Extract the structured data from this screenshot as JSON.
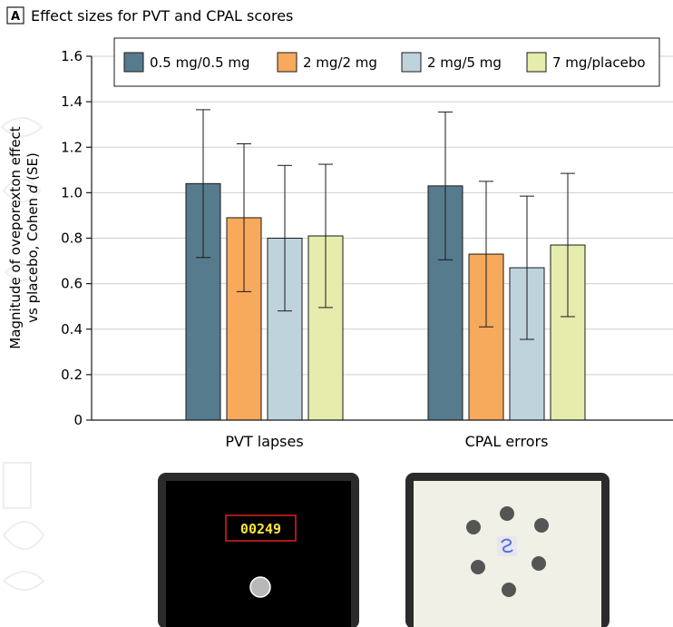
{
  "panel": {
    "letter": "A",
    "title": "Effect sizes for PVT and CPAL scores"
  },
  "chart_data": {
    "type": "bar",
    "categories": [
      "PVT lapses",
      "CPAL errors"
    ],
    "series": [
      {
        "name": "0.5 mg/0.5 mg",
        "color": "#567b8d",
        "values": [
          1.04,
          1.03
        ],
        "se_low": [
          0.715,
          0.705
        ],
        "se_high": [
          1.365,
          1.355
        ]
      },
      {
        "name": "2 mg/2 mg",
        "color": "#f7a95c",
        "values": [
          0.89,
          0.73
        ],
        "se_low": [
          0.565,
          0.41
        ],
        "se_high": [
          1.215,
          1.05
        ]
      },
      {
        "name": "2 mg/5 mg",
        "color": "#bfd3dd",
        "values": [
          0.8,
          0.67
        ],
        "se_low": [
          0.48,
          0.355
        ],
        "se_high": [
          1.12,
          0.985
        ]
      },
      {
        "name": "7 mg/placebo",
        "color": "#e6ecac",
        "values": [
          0.81,
          0.77
        ],
        "se_low": [
          0.495,
          0.455
        ],
        "se_high": [
          1.125,
          1.085
        ]
      }
    ],
    "ylabel_line1": "Magnitude of oveporexton effect",
    "ylabel_line2_prefix": "vs placebo, Cohen",
    "ylabel_line2_italic": "d",
    "ylabel_line2_suffix": "(SE)",
    "ylim": [
      0,
      1.6
    ],
    "yticks": [
      "0",
      "0.2",
      "0.4",
      "0.6",
      "0.8",
      "1.0",
      "1.2",
      "1.4",
      "1.6"
    ],
    "ytick_values": [
      0,
      0.2,
      0.4,
      0.6,
      0.8,
      1.0,
      1.2,
      1.4,
      1.6
    ],
    "grid": true,
    "legend_position": "top"
  },
  "illustrations": {
    "pvt_counter": "00249",
    "pvt_screen_color": "#000000",
    "pvt_counter_color": "#ffe23a",
    "pvt_counter_border": "#e02020",
    "cpal_screen_color": "#f1f0e6",
    "cpal_icon": "spiral-icon"
  }
}
